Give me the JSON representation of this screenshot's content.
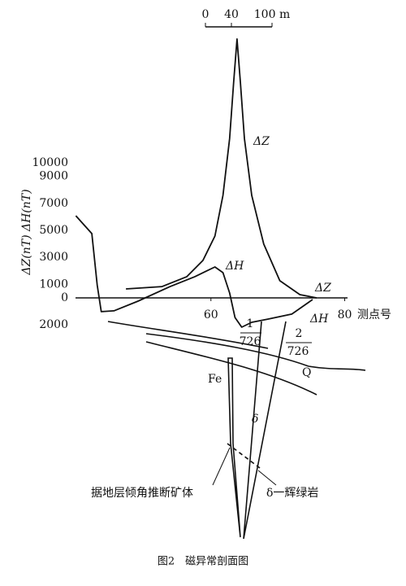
{
  "chart_data": {
    "type": "line",
    "y_label": "ΔZ(nT) ΔH(nT)",
    "x_label": "测点号",
    "caption": "图2　磁异常剖面图",
    "scale_bar": {
      "labels": [
        "0",
        "40",
        "100 m"
      ]
    },
    "xlim": [
      40,
      82
    ],
    "xticks": [
      60,
      80
    ],
    "ylim": [
      -2000,
      20000
    ],
    "yticks": [
      {
        "value": -2000,
        "label": "2000"
      },
      0,
      1000,
      3000,
      5000,
      7000,
      9000,
      10000
    ],
    "series": [
      {
        "name": "ΔZ",
        "color": "#111111",
        "x": [
          47.3,
          52.7,
          56.4,
          58.8,
          60.6,
          61.8,
          62.8,
          63.4,
          63.9,
          64.4,
          65.0,
          66.1,
          67.9,
          70.3,
          73.3,
          75.8
        ],
        "values": [
          660,
          840,
          1570,
          2770,
          4580,
          7590,
          11800,
          16000,
          19160,
          16000,
          11800,
          7590,
          3980,
          1270,
          240,
          0
        ]
      },
      {
        "name": "ΔH",
        "color": "#111111",
        "x": [
          39.8,
          42.2,
          43.0,
          43.6,
          45.5,
          49.1,
          53.9,
          57.6,
          60.6,
          61.8,
          62.8,
          63.6,
          64.6,
          66.1,
          68.5,
          72.1,
          75.2
        ],
        "values": [
          6080,
          4760,
          960,
          -1020,
          -960,
          -240,
          840,
          1570,
          2290,
          1870,
          360,
          -1450,
          -2170,
          -1810,
          -1570,
          -1200,
          -120
        ]
      }
    ],
    "annotations": {
      "hole1_num": "1",
      "hole1_den": "726",
      "hole2_num": "2",
      "hole2_den": "726",
      "q": "Q",
      "fe": "Fe",
      "delta": "δ",
      "ore_note": "据地层倾角推断矿体",
      "rock_note": "δ一辉绿岩"
    }
  }
}
